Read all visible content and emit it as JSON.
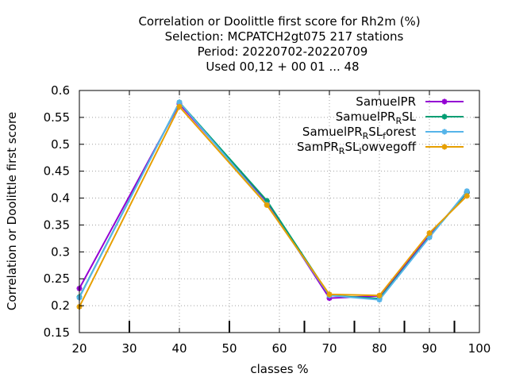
{
  "chart_data": {
    "type": "line",
    "title_lines": [
      "Correlation or Doolittle first score  for Rh2m (%)",
      "Selection: MCPATCH2gt075    217 stations",
      "Period: 20220702-20220709",
      "Used  00,12  + 00 01 ... 48"
    ],
    "xlabel": "classes %",
    "ylabel": "Correlation or Doolittle first score",
    "xlim": [
      20,
      100
    ],
    "ylim": [
      0.15,
      0.6
    ],
    "x_ticks": [
      "20",
      "30",
      "40",
      "50",
      "60",
      "70",
      "80",
      "90",
      "100"
    ],
    "y_ticks": [
      "0.15",
      "0.2",
      "0.25",
      "0.3",
      "0.35",
      "0.4",
      "0.45",
      "0.5",
      "0.55",
      "0.6"
    ],
    "minor_ticks_x": [
      30,
      50,
      65,
      75,
      85,
      95
    ],
    "grid": true,
    "legend_position": "top-right",
    "series": [
      {
        "legend": {
          "main": "SamuelPR",
          "parts": []
        },
        "color": "#9400d3",
        "x": [
          20,
          40,
          57.5,
          70,
          80,
          90,
          97.5
        ],
        "y": [
          0.232,
          0.575,
          0.393,
          0.214,
          0.218,
          0.33,
          0.41
        ]
      },
      {
        "legend": {
          "main": "SamuelPR",
          "parts": [
            {
              "sub": "R"
            },
            {
              "text": "SL"
            }
          ]
        },
        "color": "#009e73",
        "x": [
          20,
          40,
          57.5,
          70,
          80,
          90,
          97.5
        ],
        "y": [
          0.216,
          0.578,
          0.395,
          0.219,
          0.213,
          0.328,
          0.411
        ]
      },
      {
        "legend": {
          "main": "SamuelPR",
          "parts": [
            {
              "sub": "R"
            },
            {
              "text": "SL"
            },
            {
              "sub": "f"
            },
            {
              "text": "orest"
            }
          ]
        },
        "color": "#56b4e9",
        "x": [
          20,
          40,
          57.5,
          70,
          80,
          90,
          97.5
        ],
        "y": [
          0.215,
          0.578,
          0.388,
          0.219,
          0.211,
          0.327,
          0.413
        ]
      },
      {
        "legend": {
          "main": "SamPR",
          "parts": [
            {
              "sub": "R"
            },
            {
              "text": "SL"
            },
            {
              "sub": "l"
            },
            {
              "text": "owvegoff"
            }
          ]
        },
        "color": "#e69f00",
        "x": [
          20,
          40,
          57.5,
          70,
          80,
          90,
          97.5
        ],
        "y": [
          0.198,
          0.57,
          0.387,
          0.221,
          0.219,
          0.335,
          0.404
        ]
      }
    ]
  }
}
